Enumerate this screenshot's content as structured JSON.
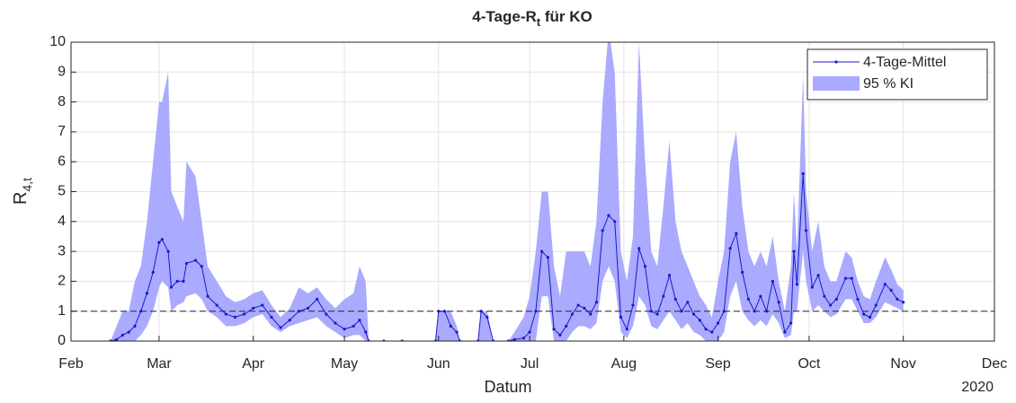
{
  "chart_data": {
    "type": "line_band",
    "title": [
      "4-Tage-R",
      "t",
      " für KO"
    ],
    "xlabel": "Datum",
    "x_secondary_label": "2020",
    "ylabel": [
      "R",
      "4,t"
    ],
    "xlim": [
      "2020-02",
      "2020-12"
    ],
    "xticks": [
      {
        "value": "2020-02",
        "label": "Feb"
      },
      {
        "value": "2020-03",
        "label": "Mar"
      },
      {
        "value": "2020-04",
        "label": "Apr"
      },
      {
        "value": "2020-05",
        "label": "May"
      },
      {
        "value": "2020-06",
        "label": "Jun"
      },
      {
        "value": "2020-07",
        "label": "Jul"
      },
      {
        "value": "2020-08",
        "label": "Aug"
      },
      {
        "value": "2020-09",
        "label": "Sep"
      },
      {
        "value": "2020-10",
        "label": "Oct"
      },
      {
        "value": "2020-11",
        "label": "Nov"
      },
      {
        "value": "2020-12",
        "label": "Dec"
      }
    ],
    "ylim": [
      0,
      10
    ],
    "yticks": [
      0,
      1,
      2,
      3,
      4,
      5,
      6,
      7,
      8,
      9,
      10
    ],
    "grid": true,
    "legend": "upper right",
    "reference_line": 1,
    "x": [
      "2020-02-14",
      "2020-02-16",
      "2020-02-18",
      "2020-02-20",
      "2020-02-22",
      "2020-02-24",
      "2020-02-26",
      "2020-02-28",
      "2020-03-01",
      "2020-03-02",
      "2020-03-04",
      "2020-03-05",
      "2020-03-07",
      "2020-03-09",
      "2020-03-10",
      "2020-03-13",
      "2020-03-15",
      "2020-03-17",
      "2020-03-20",
      "2020-03-23",
      "2020-03-26",
      "2020-03-29",
      "2020-04-01",
      "2020-04-04",
      "2020-04-07",
      "2020-04-10",
      "2020-04-13",
      "2020-04-16",
      "2020-04-19",
      "2020-04-22",
      "2020-04-25",
      "2020-04-28",
      "2020-05-01",
      "2020-05-04",
      "2020-05-06",
      "2020-05-08",
      "2020-05-09",
      "2020-05-14",
      "2020-05-17",
      "2020-05-20",
      "2020-05-31",
      "2020-06-01",
      "2020-06-03",
      "2020-06-05",
      "2020-06-07",
      "2020-06-08",
      "2020-06-14",
      "2020-06-15",
      "2020-06-17",
      "2020-06-19",
      "2020-06-24",
      "2020-06-26",
      "2020-06-29",
      "2020-07-01",
      "2020-07-03",
      "2020-07-05",
      "2020-07-07",
      "2020-07-09",
      "2020-07-11",
      "2020-07-13",
      "2020-07-15",
      "2020-07-17",
      "2020-07-19",
      "2020-07-21",
      "2020-07-23",
      "2020-07-25",
      "2020-07-27",
      "2020-07-29",
      "2020-07-31",
      "2020-08-02",
      "2020-08-04",
      "2020-08-06",
      "2020-08-08",
      "2020-08-10",
      "2020-08-12",
      "2020-08-14",
      "2020-08-16",
      "2020-08-18",
      "2020-08-20",
      "2020-08-22",
      "2020-08-24",
      "2020-08-26",
      "2020-08-28",
      "2020-08-30",
      "2020-09-01",
      "2020-09-03",
      "2020-09-05",
      "2020-09-07",
      "2020-09-09",
      "2020-09-11",
      "2020-09-13",
      "2020-09-15",
      "2020-09-17",
      "2020-09-19",
      "2020-09-21",
      "2020-09-23",
      "2020-09-25",
      "2020-09-26",
      "2020-09-27",
      "2020-09-29",
      "2020-09-30",
      "2020-10-02",
      "2020-10-04",
      "2020-10-06",
      "2020-10-08",
      "2020-10-10",
      "2020-10-13",
      "2020-10-15",
      "2020-10-17",
      "2020-10-19",
      "2020-10-21",
      "2020-10-23",
      "2020-10-26",
      "2020-10-28",
      "2020-10-30",
      "2020-11-01"
    ],
    "series": [
      {
        "name": "4-Tage-Mittel",
        "color": "#1a1acc",
        "values": [
          0,
          0.05,
          0.2,
          0.3,
          0.5,
          1.0,
          1.6,
          2.3,
          3.3,
          3.4,
          3.0,
          1.8,
          2.0,
          2.0,
          2.6,
          2.7,
          2.5,
          1.5,
          1.2,
          0.9,
          0.8,
          0.9,
          1.1,
          1.2,
          0.8,
          0.45,
          0.7,
          1.0,
          1.1,
          1.4,
          0.9,
          0.6,
          0.4,
          0.5,
          0.7,
          0.3,
          0,
          0,
          null,
          0,
          0,
          1.0,
          1.0,
          0.5,
          0.3,
          0,
          0,
          1.0,
          0.8,
          0,
          0,
          0.05,
          0.1,
          0.3,
          1.0,
          3.0,
          2.8,
          0.4,
          0.2,
          0.5,
          0.9,
          1.2,
          1.1,
          0.9,
          1.3,
          3.7,
          4.2,
          4.0,
          0.8,
          0.4,
          1.2,
          3.1,
          2.5,
          1.0,
          0.9,
          1.5,
          2.2,
          1.4,
          1.0,
          1.3,
          0.9,
          0.7,
          0.4,
          0.3,
          0.6,
          1.0,
          3.1,
          3.6,
          2.3,
          1.4,
          1.0,
          1.5,
          1.0,
          2.0,
          1.3,
          0.3,
          0.6,
          3.0,
          1.9,
          5.6,
          3.7,
          1.8,
          2.2,
          1.5,
          1.2,
          1.4,
          2.1,
          2.1,
          1.4,
          0.9,
          0.8,
          1.2,
          1.9,
          1.7,
          1.4,
          1.3
        ]
      }
    ],
    "band": {
      "name": "95 % KI",
      "color": "#aaaaff",
      "lower": [
        0,
        0,
        0,
        0,
        0,
        0.2,
        0.5,
        1,
        1.8,
        2,
        1.8,
        1,
        1.2,
        1.3,
        1.5,
        1.6,
        1.4,
        1,
        0.8,
        0.5,
        0.5,
        0.6,
        0.8,
        0.9,
        0.5,
        0.3,
        0.5,
        0.6,
        0.7,
        0.8,
        0.5,
        0.3,
        0.1,
        0.2,
        0.2,
        0,
        0,
        0,
        null,
        0,
        0,
        0,
        0,
        0,
        0,
        0,
        0,
        0,
        0,
        0,
        0,
        0,
        0,
        0,
        0,
        1.5,
        1.5,
        0,
        0,
        0,
        0.3,
        0.5,
        0.5,
        0.4,
        0.6,
        2,
        2.5,
        2,
        0.3,
        0.1,
        0.5,
        1.5,
        1.2,
        0.5,
        0.4,
        0.7,
        1,
        0.7,
        0.4,
        0.6,
        0.3,
        0.2,
        0,
        0,
        0,
        0.3,
        1.5,
        2,
        1,
        0.7,
        0.5,
        0.7,
        0.5,
        0.9,
        0.6,
        0.1,
        0.2,
        1,
        1,
        3,
        2,
        1,
        1.2,
        1,
        0.8,
        0.9,
        1.4,
        1.4,
        1,
        0.6,
        0.6,
        0.8,
        1.3,
        1.2,
        1.1,
        1
      ],
      "upper": [
        0,
        0.5,
        1,
        1,
        2,
        2.5,
        4,
        6,
        8,
        8,
        9,
        5,
        4.5,
        4,
        6,
        5.5,
        4,
        2.5,
        2,
        1.5,
        1.3,
        1.4,
        1.6,
        1.7,
        1.2,
        0.8,
        1.1,
        1.8,
        1.6,
        1.8,
        1.4,
        1.1,
        1.4,
        1.6,
        2.5,
        2,
        0,
        0,
        null,
        0,
        0,
        1,
        1,
        1,
        0.5,
        0,
        0,
        1,
        1,
        0,
        0,
        0.3,
        0.8,
        1.5,
        3,
        5,
        5,
        2.5,
        1.5,
        3,
        3,
        3,
        3,
        2.5,
        4,
        8,
        10.4,
        9,
        3,
        2,
        3.5,
        10,
        6,
        3,
        2.5,
        4.5,
        6.7,
        4,
        3,
        2.5,
        2,
        1.5,
        1.2,
        0.8,
        2,
        3,
        6,
        7,
        4.5,
        3,
        2.5,
        3,
        2.5,
        3.5,
        2,
        1,
        2.5,
        5,
        3,
        8.9,
        5,
        3,
        4,
        2.5,
        2,
        2,
        3,
        2.8,
        2,
        1.5,
        1.4,
        2,
        2.8,
        2.4,
        1.9,
        1.7
      ]
    }
  }
}
